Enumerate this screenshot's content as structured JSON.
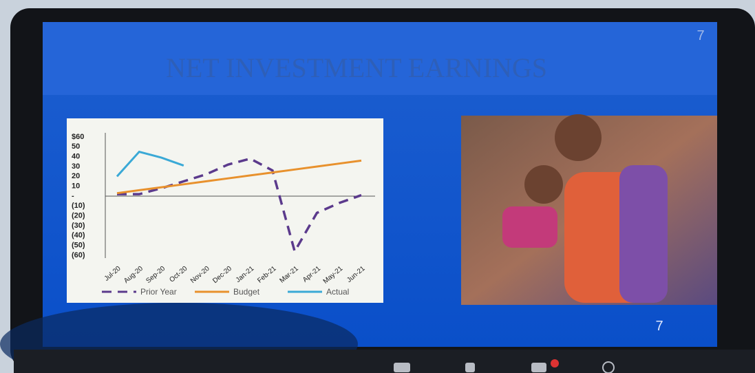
{
  "slide": {
    "title": "NET INVESTMENT EARNINGS",
    "number_top": "7",
    "number_bottom": "7"
  },
  "chart_data": {
    "type": "line",
    "categories": [
      "Jul-20",
      "Aug-20",
      "Sep-20",
      "Oct-20",
      "Nov-20",
      "Dec-20",
      "Jan-21",
      "Feb-21",
      "Mar-21",
      "Apr-21",
      "May-21",
      "Jun-21"
    ],
    "series": [
      {
        "name": "Prior Year",
        "color": "#5b3a8c",
        "dash": true,
        "values": [
          2,
          2,
          8,
          15,
          22,
          32,
          38,
          26,
          -56,
          -17,
          -7,
          1
        ]
      },
      {
        "name": "Budget",
        "color": "#e8912d",
        "dash": false,
        "values": [
          3,
          6,
          9,
          12,
          15,
          18,
          21,
          24,
          27,
          30,
          33,
          36
        ]
      },
      {
        "name": "Actual",
        "color": "#3aa9d6",
        "dash": false,
        "values": [
          20,
          45,
          39,
          31,
          null,
          null,
          null,
          null,
          null,
          null,
          null,
          null
        ]
      }
    ],
    "ylim": [
      -60,
      60
    ],
    "yticks": [
      {
        "value": 60,
        "label": "$60"
      },
      50,
      40,
      30,
      20,
      10,
      {
        "value": 0,
        "label": "-"
      },
      {
        "value": -10,
        "label": "(10)"
      },
      {
        "value": -20,
        "label": "(20)"
      },
      {
        "value": -30,
        "label": "(30)"
      },
      {
        "value": -40,
        "label": "(40)"
      },
      {
        "value": -50,
        "label": "(50)"
      },
      {
        "value": -60,
        "label": "(60)"
      }
    ]
  }
}
